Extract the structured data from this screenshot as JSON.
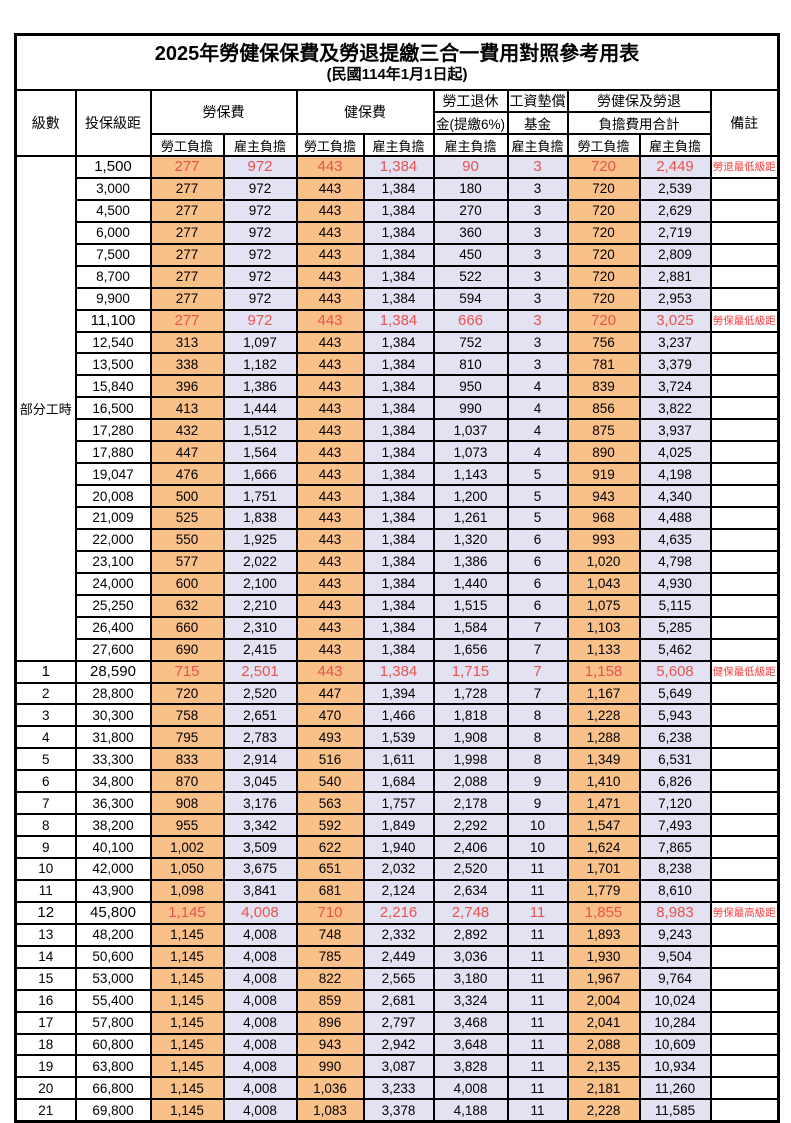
{
  "table": {
    "title": "2025年勞健保保費及勞退提繳三合一費用對照參考用表",
    "subtitle": "(民國114年1月1日起)",
    "colors": {
      "employee_bg": "#F9C08A",
      "employer_bg": "#E3E2F2",
      "highlight_text": "#E8524E",
      "remark_text": "#FA3B3B",
      "border": "#000000"
    },
    "header": {
      "level": "級數",
      "salary_bracket": "投保級距",
      "labor_insurance": "勞保費",
      "health_insurance": "健保費",
      "pension_line1": "勞工退休",
      "pension_line2": "金(提繳6%)",
      "wage_fund_line1": "工資墊償",
      "wage_fund_line2": "基金",
      "total_line1": "勞健保及勞退",
      "total_line2": "負擔費用合計",
      "remark": "備註",
      "employee_burden": "勞工負擔",
      "employer_burden": "雇主負擔"
    },
    "part_time_label": "部分工時",
    "part_time_row_count": 23,
    "rows": [
      {
        "level": "",
        "salary": "1,500",
        "v": [
          "277",
          "972",
          "443",
          "1,384",
          "90",
          "3",
          "720",
          "2,449"
        ],
        "remark": "勞退最低級距",
        "hl": true
      },
      {
        "level": "",
        "salary": "3,000",
        "v": [
          "277",
          "972",
          "443",
          "1,384",
          "180",
          "3",
          "720",
          "2,539"
        ],
        "remark": "",
        "hl": false
      },
      {
        "level": "",
        "salary": "4,500",
        "v": [
          "277",
          "972",
          "443",
          "1,384",
          "270",
          "3",
          "720",
          "2,629"
        ],
        "remark": "",
        "hl": false
      },
      {
        "level": "",
        "salary": "6,000",
        "v": [
          "277",
          "972",
          "443",
          "1,384",
          "360",
          "3",
          "720",
          "2,719"
        ],
        "remark": "",
        "hl": false
      },
      {
        "level": "",
        "salary": "7,500",
        "v": [
          "277",
          "972",
          "443",
          "1,384",
          "450",
          "3",
          "720",
          "2,809"
        ],
        "remark": "",
        "hl": false
      },
      {
        "level": "",
        "salary": "8,700",
        "v": [
          "277",
          "972",
          "443",
          "1,384",
          "522",
          "3",
          "720",
          "2,881"
        ],
        "remark": "",
        "hl": false
      },
      {
        "level": "",
        "salary": "9,900",
        "v": [
          "277",
          "972",
          "443",
          "1,384",
          "594",
          "3",
          "720",
          "2,953"
        ],
        "remark": "",
        "hl": false
      },
      {
        "level": "",
        "salary": "11,100",
        "v": [
          "277",
          "972",
          "443",
          "1,384",
          "666",
          "3",
          "720",
          "3,025"
        ],
        "remark": "勞保最低級距",
        "hl": true
      },
      {
        "level": "",
        "salary": "12,540",
        "v": [
          "313",
          "1,097",
          "443",
          "1,384",
          "752",
          "3",
          "756",
          "3,237"
        ],
        "remark": "",
        "hl": false
      },
      {
        "level": "",
        "salary": "13,500",
        "v": [
          "338",
          "1,182",
          "443",
          "1,384",
          "810",
          "3",
          "781",
          "3,379"
        ],
        "remark": "",
        "hl": false
      },
      {
        "level": "",
        "salary": "15,840",
        "v": [
          "396",
          "1,386",
          "443",
          "1,384",
          "950",
          "4",
          "839",
          "3,724"
        ],
        "remark": "",
        "hl": false
      },
      {
        "level": "",
        "salary": "16,500",
        "v": [
          "413",
          "1,444",
          "443",
          "1,384",
          "990",
          "4",
          "856",
          "3,822"
        ],
        "remark": "",
        "hl": false
      },
      {
        "level": "",
        "salary": "17,280",
        "v": [
          "432",
          "1,512",
          "443",
          "1,384",
          "1,037",
          "4",
          "875",
          "3,937"
        ],
        "remark": "",
        "hl": false
      },
      {
        "level": "",
        "salary": "17,880",
        "v": [
          "447",
          "1,564",
          "443",
          "1,384",
          "1,073",
          "4",
          "890",
          "4,025"
        ],
        "remark": "",
        "hl": false
      },
      {
        "level": "",
        "salary": "19,047",
        "v": [
          "476",
          "1,666",
          "443",
          "1,384",
          "1,143",
          "5",
          "919",
          "4,198"
        ],
        "remark": "",
        "hl": false
      },
      {
        "level": "",
        "salary": "20,008",
        "v": [
          "500",
          "1,751",
          "443",
          "1,384",
          "1,200",
          "5",
          "943",
          "4,340"
        ],
        "remark": "",
        "hl": false
      },
      {
        "level": "",
        "salary": "21,009",
        "v": [
          "525",
          "1,838",
          "443",
          "1,384",
          "1,261",
          "5",
          "968",
          "4,488"
        ],
        "remark": "",
        "hl": false
      },
      {
        "level": "",
        "salary": "22,000",
        "v": [
          "550",
          "1,925",
          "443",
          "1,384",
          "1,320",
          "6",
          "993",
          "4,635"
        ],
        "remark": "",
        "hl": false
      },
      {
        "level": "",
        "salary": "23,100",
        "v": [
          "577",
          "2,022",
          "443",
          "1,384",
          "1,386",
          "6",
          "1,020",
          "4,798"
        ],
        "remark": "",
        "hl": false
      },
      {
        "level": "",
        "salary": "24,000",
        "v": [
          "600",
          "2,100",
          "443",
          "1,384",
          "1,440",
          "6",
          "1,043",
          "4,930"
        ],
        "remark": "",
        "hl": false
      },
      {
        "level": "",
        "salary": "25,250",
        "v": [
          "632",
          "2,210",
          "443",
          "1,384",
          "1,515",
          "6",
          "1,075",
          "5,115"
        ],
        "remark": "",
        "hl": false
      },
      {
        "level": "",
        "salary": "26,400",
        "v": [
          "660",
          "2,310",
          "443",
          "1,384",
          "1,584",
          "7",
          "1,103",
          "5,285"
        ],
        "remark": "",
        "hl": false
      },
      {
        "level": "",
        "salary": "27,600",
        "v": [
          "690",
          "2,415",
          "443",
          "1,384",
          "1,656",
          "7",
          "1,133",
          "5,462"
        ],
        "remark": "",
        "hl": false
      },
      {
        "level": "1",
        "salary": "28,590",
        "v": [
          "715",
          "2,501",
          "443",
          "1,384",
          "1,715",
          "7",
          "1,158",
          "5,608"
        ],
        "remark": "健保最低級距",
        "hl": true,
        "thick_top": true
      },
      {
        "level": "2",
        "salary": "28,800",
        "v": [
          "720",
          "2,520",
          "447",
          "1,394",
          "1,728",
          "7",
          "1,167",
          "5,649"
        ],
        "remark": "",
        "hl": false
      },
      {
        "level": "3",
        "salary": "30,300",
        "v": [
          "758",
          "2,651",
          "470",
          "1,466",
          "1,818",
          "8",
          "1,228",
          "5,943"
        ],
        "remark": "",
        "hl": false
      },
      {
        "level": "4",
        "salary": "31,800",
        "v": [
          "795",
          "2,783",
          "493",
          "1,539",
          "1,908",
          "8",
          "1,288",
          "6,238"
        ],
        "remark": "",
        "hl": false
      },
      {
        "level": "5",
        "salary": "33,300",
        "v": [
          "833",
          "2,914",
          "516",
          "1,611",
          "1,998",
          "8",
          "1,349",
          "6,531"
        ],
        "remark": "",
        "hl": false
      },
      {
        "level": "6",
        "salary": "34,800",
        "v": [
          "870",
          "3,045",
          "540",
          "1,684",
          "2,088",
          "9",
          "1,410",
          "6,826"
        ],
        "remark": "",
        "hl": false
      },
      {
        "level": "7",
        "salary": "36,300",
        "v": [
          "908",
          "3,176",
          "563",
          "1,757",
          "2,178",
          "9",
          "1,471",
          "7,120"
        ],
        "remark": "",
        "hl": false
      },
      {
        "level": "8",
        "salary": "38,200",
        "v": [
          "955",
          "3,342",
          "592",
          "1,849",
          "2,292",
          "10",
          "1,547",
          "7,493"
        ],
        "remark": "",
        "hl": false
      },
      {
        "level": "9",
        "salary": "40,100",
        "v": [
          "1,002",
          "3,509",
          "622",
          "1,940",
          "2,406",
          "10",
          "1,624",
          "7,865"
        ],
        "remark": "",
        "hl": false
      },
      {
        "level": "10",
        "salary": "42,000",
        "v": [
          "1,050",
          "3,675",
          "651",
          "2,032",
          "2,520",
          "11",
          "1,701",
          "8,238"
        ],
        "remark": "",
        "hl": false
      },
      {
        "level": "11",
        "salary": "43,900",
        "v": [
          "1,098",
          "3,841",
          "681",
          "2,124",
          "2,634",
          "11",
          "1,779",
          "8,610"
        ],
        "remark": "",
        "hl": false
      },
      {
        "level": "12",
        "salary": "45,800",
        "v": [
          "1,145",
          "4,008",
          "710",
          "2,216",
          "2,748",
          "11",
          "1,855",
          "8,983"
        ],
        "remark": "勞保最高級距",
        "hl": true
      },
      {
        "level": "13",
        "salary": "48,200",
        "v": [
          "1,145",
          "4,008",
          "748",
          "2,332",
          "2,892",
          "11",
          "1,893",
          "9,243"
        ],
        "remark": "",
        "hl": false
      },
      {
        "level": "14",
        "salary": "50,600",
        "v": [
          "1,145",
          "4,008",
          "785",
          "2,449",
          "3,036",
          "11",
          "1,930",
          "9,504"
        ],
        "remark": "",
        "hl": false
      },
      {
        "level": "15",
        "salary": "53,000",
        "v": [
          "1,145",
          "4,008",
          "822",
          "2,565",
          "3,180",
          "11",
          "1,967",
          "9,764"
        ],
        "remark": "",
        "hl": false
      },
      {
        "level": "16",
        "salary": "55,400",
        "v": [
          "1,145",
          "4,008",
          "859",
          "2,681",
          "3,324",
          "11",
          "2,004",
          "10,024"
        ],
        "remark": "",
        "hl": false
      },
      {
        "level": "17",
        "salary": "57,800",
        "v": [
          "1,145",
          "4,008",
          "896",
          "2,797",
          "3,468",
          "11",
          "2,041",
          "10,284"
        ],
        "remark": "",
        "hl": false
      },
      {
        "level": "18",
        "salary": "60,800",
        "v": [
          "1,145",
          "4,008",
          "943",
          "2,942",
          "3,648",
          "11",
          "2,088",
          "10,609"
        ],
        "remark": "",
        "hl": false
      },
      {
        "level": "19",
        "salary": "63,800",
        "v": [
          "1,145",
          "4,008",
          "990",
          "3,087",
          "3,828",
          "11",
          "2,135",
          "10,934"
        ],
        "remark": "",
        "hl": false
      },
      {
        "level": "20",
        "salary": "66,800",
        "v": [
          "1,145",
          "4,008",
          "1,036",
          "3,233",
          "4,008",
          "11",
          "2,181",
          "11,260"
        ],
        "remark": "",
        "hl": false
      },
      {
        "level": "21",
        "salary": "69,800",
        "v": [
          "1,145",
          "4,008",
          "1,083",
          "3,378",
          "4,188",
          "11",
          "2,228",
          "11,585"
        ],
        "remark": "",
        "hl": false
      }
    ]
  }
}
